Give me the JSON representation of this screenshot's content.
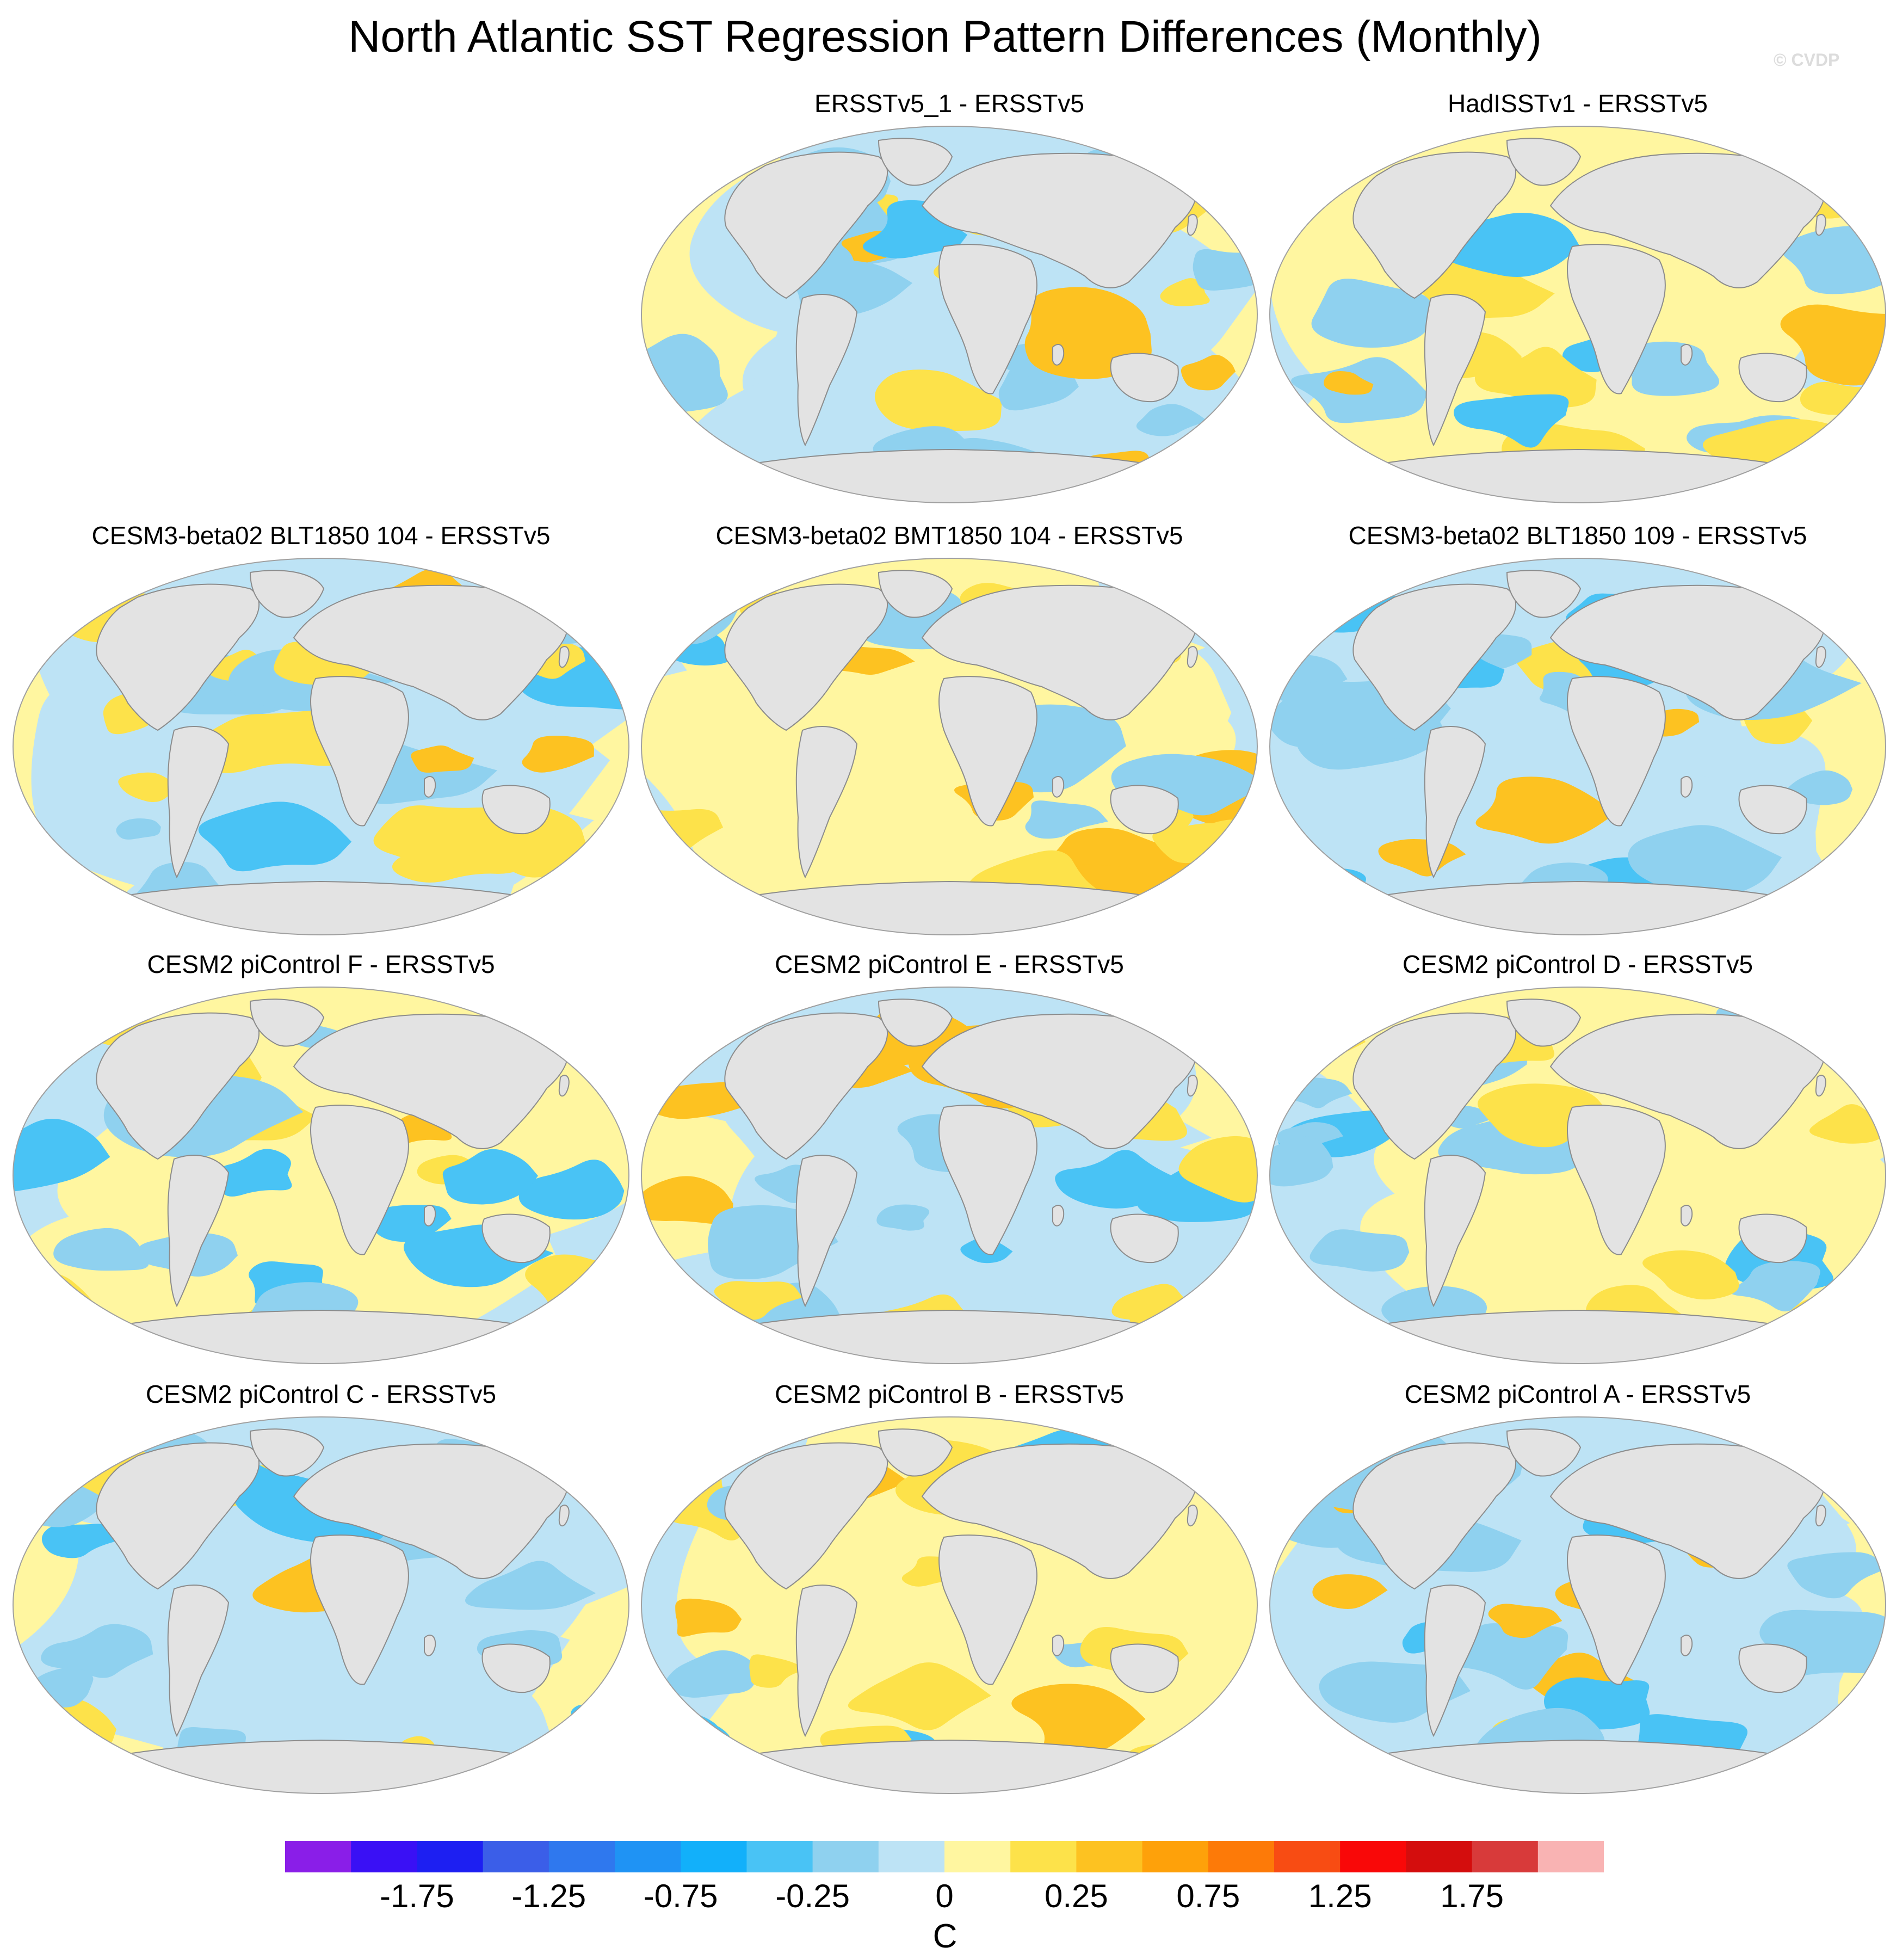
{
  "title": "North Atlantic SST Regression Pattern Differences (Monthly)",
  "watermark": "© CVDP",
  "panels": [
    {
      "title": "ERSSTv5_1 - ERSSTv5",
      "variant": 0
    },
    {
      "title": "HadISSTv1 - ERSSTv5",
      "variant": 1
    },
    {
      "title": "CESM3-beta02 BLT1850 104 - ERSSTv5",
      "variant": 2
    },
    {
      "title": "CESM3-beta02 BMT1850 104 - ERSSTv5",
      "variant": 3
    },
    {
      "title": "CESM3-beta02 BLT1850 109 - ERSSTv5",
      "variant": 4
    },
    {
      "title": "CESM2 piControl F - ERSSTv5",
      "variant": 5
    },
    {
      "title": "CESM2 piControl E - ERSSTv5",
      "variant": 6
    },
    {
      "title": "CESM2 piControl D - ERSSTv5",
      "variant": 7
    },
    {
      "title": "CESM2 piControl C - ERSSTv5",
      "variant": 8
    },
    {
      "title": "CESM2 piControl B - ERSSTv5",
      "variant": 9
    },
    {
      "title": "CESM2 piControl A - ERSSTv5",
      "variant": 10
    }
  ],
  "colorbar": {
    "colors": [
      "#8a1ee8",
      "#3a10f5",
      "#1d1ff2",
      "#3b5ee8",
      "#2f78ee",
      "#1f93f4",
      "#12b0fa",
      "#49c3f5",
      "#8fd1ef",
      "#bde3f5",
      "#fff6a0",
      "#fde24a",
      "#fdc221",
      "#fea10a",
      "#fd7a08",
      "#f84c13",
      "#f90808",
      "#d40d0d",
      "#d83a3a",
      "#f9b3b3"
    ],
    "labels": [
      "-1.75",
      "-1.25",
      "-0.75",
      "-0.25",
      "0",
      "0.25",
      "0.75",
      "1.25",
      "1.75"
    ],
    "unit": "C"
  },
  "colors": {
    "land": "#e3e3e3",
    "coast": "#8c8c8c",
    "ocean_near_zero_pos": "#fff6a0",
    "ocean_near_zero_neg": "#bde3f5",
    "warm": "#fde24a",
    "warmer": "#fdc221",
    "cool": "#8fd1ef",
    "cooler": "#49c3f5"
  }
}
